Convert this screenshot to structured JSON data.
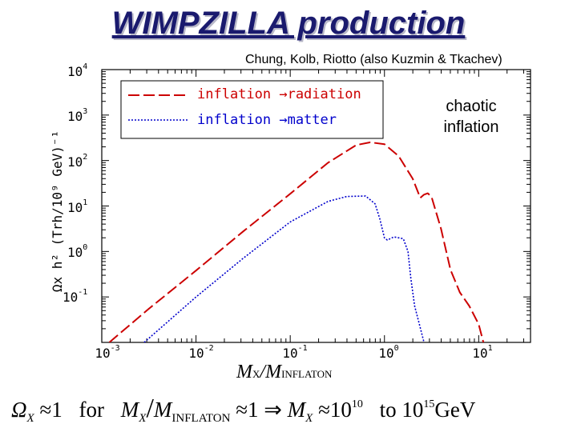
{
  "slide": {
    "title": "WIMPZILLA production",
    "credit": "Chung, Kolb, Riotto (also Kuzmin & Tkachev)"
  },
  "annotation": {
    "line1": "chaotic",
    "line2": "inflation"
  },
  "formula": {
    "omega": "Ω",
    "x_sub": "X",
    "approx1": "≈1",
    "for_word": "for",
    "m": "M",
    "x2": "X",
    "slash": "/",
    "m2": "M",
    "inflaton_sub": "INFLATON",
    "approx_impl": "≈1 ⇒",
    "m3": "M",
    "x3": "X",
    "approx10": "≈10",
    "exp1": "10",
    "to_word": "to",
    "ten": "10",
    "exp2": "15",
    "unit": "GeV"
  },
  "chart_data": {
    "type": "line",
    "title": "",
    "xlabel": "M_X / M_INFLATON",
    "xlabel_parts": {
      "m": "M",
      "x": "X",
      "slash": "/",
      "m2": "M",
      "sub": "INFLATON"
    },
    "ylabel": "Ωx h² (Trh/10⁹ GeV)⁻¹",
    "x_scale": "log",
    "y_scale": "log",
    "xlim_log10": [
      -3.0,
      1.55
    ],
    "ylim_log10": [
      -2.0,
      4.0
    ],
    "x_ticks": [
      {
        "base": "10",
        "exp": "-3"
      },
      {
        "base": "10",
        "exp": "-2"
      },
      {
        "base": "10",
        "exp": "-1"
      },
      {
        "base": "10",
        "exp": "0"
      },
      {
        "base": "10",
        "exp": "1"
      }
    ],
    "y_ticks": [
      {
        "base": "10",
        "exp": "4"
      },
      {
        "base": "10",
        "exp": "3"
      },
      {
        "base": "10",
        "exp": "2"
      },
      {
        "base": "10",
        "exp": "1"
      },
      {
        "base": "10",
        "exp": "0"
      },
      {
        "base": "10",
        "exp": "-1"
      }
    ],
    "legend": {
      "placement": "top-left"
    },
    "series": [
      {
        "name": "inflation →radiation",
        "style": "dashed",
        "color": "#cc0000",
        "log10_x": [
          -2.92,
          -2.5,
          -2.0,
          -1.5,
          -1.0,
          -0.6,
          -0.3,
          -0.15,
          0.0,
          0.15,
          0.3,
          0.38,
          0.42,
          0.46,
          0.5,
          0.6,
          0.7,
          0.8,
          0.9,
          1.0,
          1.05
        ],
        "log10_y": [
          -2.0,
          -1.26,
          -0.42,
          0.44,
          1.27,
          1.95,
          2.34,
          2.4,
          2.36,
          2.1,
          1.6,
          1.18,
          1.25,
          1.28,
          1.2,
          0.5,
          -0.4,
          -0.9,
          -1.2,
          -1.6,
          -2.0
        ]
      },
      {
        "name": "inflation →matter",
        "style": "dotted",
        "color": "#0000cc",
        "log10_x": [
          -2.55,
          -2.0,
          -1.5,
          -1.0,
          -0.6,
          -0.4,
          -0.2,
          -0.1,
          -0.05,
          0.0,
          0.03,
          0.1,
          0.2,
          0.25,
          0.28,
          0.32,
          0.37,
          0.42
        ],
        "log10_y": [
          -2.0,
          -1.0,
          -0.15,
          0.65,
          1.1,
          1.21,
          1.22,
          1.05,
          0.72,
          0.3,
          0.25,
          0.32,
          0.28,
          0.0,
          -0.6,
          -1.2,
          -1.6,
          -2.0
        ]
      }
    ]
  },
  "colors": {
    "title": "#1a1a6e",
    "radiation": "#cc0000",
    "matter": "#0000cc"
  }
}
